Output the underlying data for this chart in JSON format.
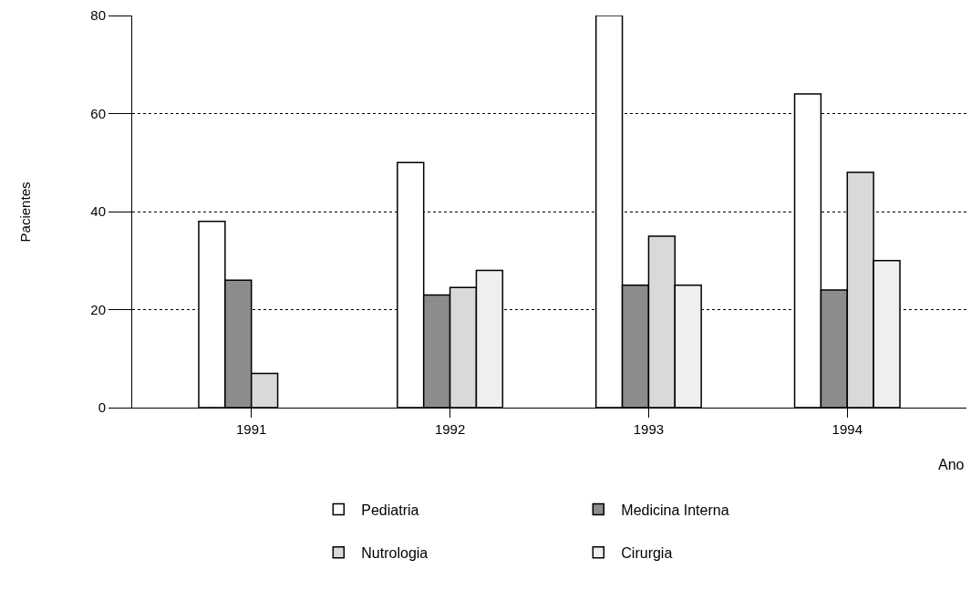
{
  "chart_data": {
    "type": "bar",
    "xlabel": "Ano",
    "ylabel": "Pacientes",
    "categories": [
      "1991",
      "1992",
      "1993",
      "1994"
    ],
    "series": [
      {
        "name": "Pediatria",
        "color": "#ffffff",
        "values": [
          38,
          50,
          80,
          64
        ]
      },
      {
        "name": "Medicina Interna",
        "color": "#8c8c8c",
        "values": [
          26,
          23,
          25,
          24
        ]
      },
      {
        "name": "Nutrologia",
        "color": "#d9d9d9",
        "values": [
          7,
          24.5,
          35,
          48
        ]
      },
      {
        "name": "Cirurgia",
        "color": "#efefef",
        "values": [
          null,
          28,
          25,
          30
        ]
      }
    ],
    "ylim": [
      0,
      80
    ],
    "yticks": [
      0,
      20,
      40,
      60,
      80
    ],
    "grid": "y",
    "legend": "bottom"
  }
}
